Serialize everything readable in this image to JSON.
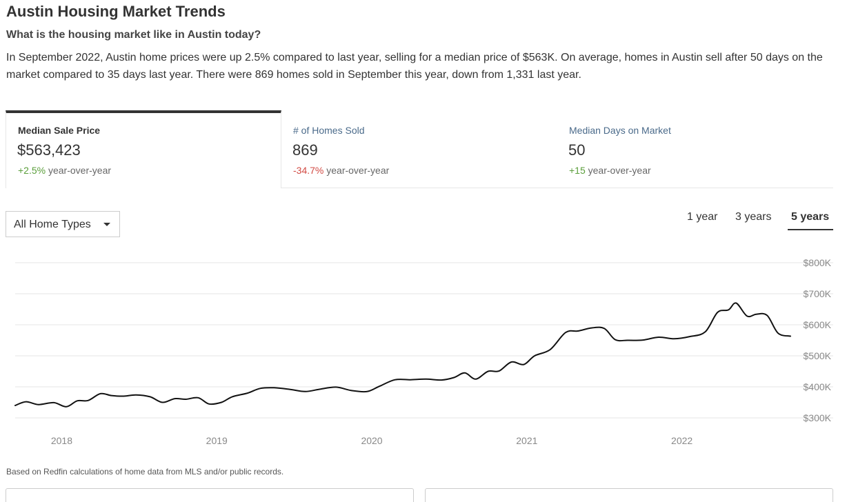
{
  "page": {
    "title": "Austin Housing Market Trends",
    "subtitle": "What is the housing market like in Austin today?",
    "summary": "In September 2022, Austin home prices were up 2.5% compared to last year, selling for a median price of $563K. On average, homes in Austin sell after 50 days on the market compared to 35 days last year. There were 869 homes sold in September this year, down from 1,331 last year."
  },
  "tabs": [
    {
      "label": "Median Sale Price",
      "value": "$563,423",
      "change": "+2.5%",
      "change_suffix": " year-over-year",
      "active": true
    },
    {
      "label": "# of Homes Sold",
      "value": "869",
      "change": "-34.7%",
      "change_suffix": " year-over-year",
      "active": false
    },
    {
      "label": "Median Days on Market",
      "value": "50",
      "change": "+15",
      "change_suffix": " year-over-year",
      "active": false
    }
  ],
  "filter": {
    "selected": "All Home Types",
    "icon": "caret-down-icon"
  },
  "ranges": [
    {
      "label": "1 year",
      "active": false
    },
    {
      "label": "3 years",
      "active": false
    },
    {
      "label": "5 years",
      "active": true
    }
  ],
  "colors": {
    "line": "#111111",
    "grid": "#e6e6e6",
    "positive": "#5a9e3a",
    "negative": "#d24a43"
  },
  "footnote": "Based on Redfin calculations of home data from MLS and/or public records.",
  "chart_data": {
    "type": "line",
    "title": "",
    "xlabel": "",
    "ylabel": "",
    "x_range": [
      2017.7,
      2022.7
    ],
    "ylim": [
      290000,
      820000
    ],
    "grid": true,
    "y_axis_side": "right",
    "y_ticks": [
      300000,
      400000,
      500000,
      600000,
      700000,
      800000
    ],
    "y_tick_labels": [
      "$300K",
      "$400K",
      "$500K",
      "$600K",
      "$700K",
      "$800K"
    ],
    "x_ticks": [
      2018,
      2019,
      2020,
      2021,
      2022
    ],
    "x_tick_labels": [
      "2018",
      "2019",
      "2020",
      "2021",
      "2022"
    ],
    "series": [
      {
        "x": [
          2017.7,
          2017.77,
          2017.85,
          2017.95,
          2018.03,
          2018.1,
          2018.17,
          2018.25,
          2018.32,
          2018.4,
          2018.48,
          2018.57,
          2018.65,
          2018.73,
          2018.8,
          2018.88,
          2018.95,
          2019.03,
          2019.1,
          2019.2,
          2019.28,
          2019.37,
          2019.47,
          2019.57,
          2019.67,
          2019.77,
          2019.87,
          2019.97,
          2020.05,
          2020.15,
          2020.25,
          2020.35,
          2020.45,
          2020.53,
          2020.6,
          2020.67,
          2020.75,
          2020.82,
          2020.9,
          2020.98,
          2021.05,
          2021.15,
          2021.25,
          2021.33,
          2021.42,
          2021.5,
          2021.57,
          2021.65,
          2021.75,
          2021.85,
          2021.95,
          2022.05,
          2022.15,
          2022.23,
          2022.3,
          2022.35,
          2022.42,
          2022.48,
          2022.55,
          2022.62,
          2022.7
        ],
        "values": [
          340000,
          352000,
          343000,
          349000,
          336000,
          355000,
          356000,
          378000,
          372000,
          370000,
          374000,
          368000,
          350000,
          362000,
          360000,
          365000,
          345000,
          350000,
          368000,
          380000,
          395000,
          397000,
          392000,
          385000,
          393000,
          399000,
          388000,
          385000,
          402000,
          423000,
          423000,
          425000,
          422000,
          430000,
          445000,
          425000,
          450000,
          451000,
          480000,
          472000,
          500000,
          520000,
          575000,
          580000,
          590000,
          588000,
          552000,
          550000,
          551000,
          560000,
          555000,
          562000,
          577000,
          640000,
          648000,
          670000,
          628000,
          634000,
          630000,
          573000,
          563423
        ]
      }
    ]
  }
}
